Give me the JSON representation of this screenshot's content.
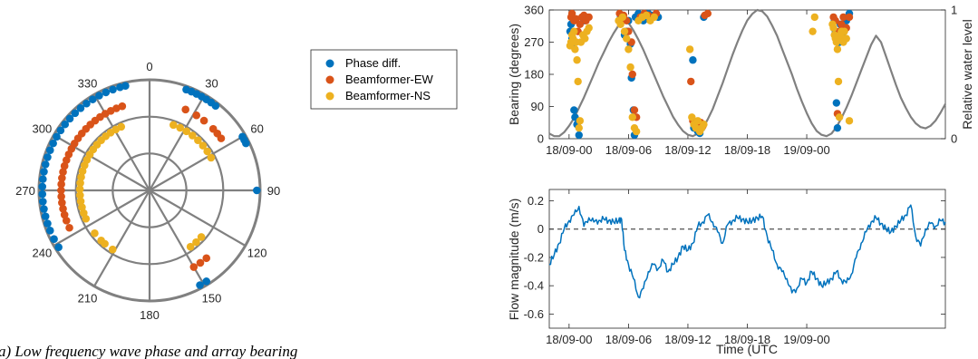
{
  "caption": "a) Low frequency wave phase and array bearing",
  "chart_data": [
    {
      "type": "scatter",
      "subtype": "polar",
      "angle_ticks": [
        "0",
        "30",
        "60",
        "90",
        "120",
        "150",
        "180",
        "210",
        "240",
        "270",
        "300",
        "330"
      ],
      "angle_zero": "top",
      "angle_direction": "clockwise",
      "rings": 3,
      "radial_tick_labels": "none",
      "legend_placement": "top-right",
      "series": [
        {
          "name": "Phase diff.",
          "color": "#0072BD",
          "r": 0.97,
          "angles": [
            238,
            243,
            248,
            252,
            256,
            260,
            264,
            268,
            272,
            276,
            280,
            284,
            288,
            292,
            296,
            300,
            304,
            308,
            312,
            316,
            320,
            324,
            328,
            332,
            336,
            340,
            344,
            347,
            20,
            23,
            26,
            29,
            32,
            35,
            38,
            60,
            62,
            64,
            90,
            148,
            152
          ]
        },
        {
          "name": "Beamformer-EW",
          "color": "#D95319",
          "r": 0.8,
          "angles": [
            245,
            250,
            254,
            258,
            262,
            266,
            270,
            274,
            278,
            282,
            286,
            290,
            294,
            298,
            302,
            306,
            310,
            314,
            318,
            322,
            326,
            330,
            334,
            338,
            342,
            24,
            32,
            38,
            46,
            50,
            54,
            140,
            145,
            150
          ]
        },
        {
          "name": "Beamformer-NS",
          "color": "#EDB120",
          "r": 0.63,
          "angles": [
            246,
            251,
            256,
            261,
            266,
            271,
            276,
            281,
            286,
            291,
            296,
            301,
            306,
            311,
            316,
            321,
            326,
            331,
            336,
            20,
            26,
            32,
            38,
            44,
            50,
            56,
            62,
            232,
            224,
            220,
            212,
            132,
            138,
            144
          ]
        }
      ]
    },
    {
      "type": "scatter",
      "ylabel": "Bearing (degrees)",
      "y2label": "Relative water level",
      "x_tick_labels": [
        "18/09-00",
        "18/09-06",
        "18/09-12",
        "18/09-18",
        "19/09-00"
      ],
      "x_range_hours": [
        -2,
        38
      ],
      "yticks": [
        "0",
        "90",
        "180",
        "270",
        "360"
      ],
      "ylim": [
        0,
        360
      ],
      "y2ticks": [
        "0",
        "1"
      ],
      "y2lim": [
        0,
        1
      ],
      "water_level": {
        "name": "Relative water level",
        "color": "#808080",
        "x_hours": [
          -2,
          -1.5,
          -1,
          -0.5,
          0,
          0.5,
          1,
          1.5,
          2,
          2.5,
          3,
          3.5,
          4,
          4.5,
          5,
          5.5,
          6,
          6.5,
          7,
          7.5,
          8,
          8.5,
          9,
          9.5,
          10,
          10.5,
          11,
          11.5,
          12,
          12.5,
          13,
          13.5,
          14,
          14.5,
          15,
          15.5,
          16,
          16.5,
          17,
          17.5,
          18,
          18.5,
          19,
          19.5,
          20,
          20.5,
          21,
          21.5,
          22,
          22.5,
          23,
          23.5,
          24,
          24.5,
          25,
          25.5,
          26,
          26.5,
          27,
          27.5,
          28,
          28.5,
          29,
          29.5,
          30,
          30.5,
          31,
          31.5,
          32,
          32.5,
          33,
          33.5,
          34,
          34.5,
          35,
          35.5,
          36,
          36.5,
          37,
          37.5,
          38
        ],
        "values": [
          0.04,
          0.02,
          0.02,
          0.05,
          0.1,
          0.16,
          0.24,
          0.32,
          0.41,
          0.5,
          0.59,
          0.67,
          0.75,
          0.82,
          0.88,
          0.92,
          0.9,
          0.84,
          0.77,
          0.69,
          0.6,
          0.51,
          0.42,
          0.33,
          0.25,
          0.17,
          0.11,
          0.06,
          0.03,
          0.02,
          0.04,
          0.08,
          0.15,
          0.23,
          0.33,
          0.43,
          0.54,
          0.65,
          0.75,
          0.84,
          0.92,
          0.97,
          1.0,
          0.99,
          0.95,
          0.88,
          0.8,
          0.7,
          0.6,
          0.5,
          0.39,
          0.29,
          0.2,
          0.12,
          0.06,
          0.03,
          0.02,
          0.04,
          0.09,
          0.16,
          0.24,
          0.33,
          0.43,
          0.53,
          0.63,
          0.73,
          0.8,
          0.75,
          0.64,
          0.53,
          0.42,
          0.32,
          0.24,
          0.17,
          0.12,
          0.09,
          0.08,
          0.1,
          0.14,
          0.2,
          0.27
        ]
      },
      "series": [
        {
          "name": "Phase diff.",
          "color": "#0072BD",
          "x_hours": [
            0.1,
            0.2,
            0.3,
            0.4,
            0.5,
            0.6,
            0.8,
            1.0,
            1.5,
            5.2,
            5.4,
            5.6,
            5.8,
            6.0,
            6.2,
            6.3,
            6.5,
            6.6,
            6.7,
            7.0,
            7.2,
            7.5,
            8.0,
            8.5,
            9.0,
            12.5,
            12.6,
            12.8,
            13.0,
            13.2,
            13.4,
            13.6,
            26.8,
            26.9,
            27.0,
            27.1,
            27.2,
            27.3,
            27.4,
            27.6,
            28.0,
            28.3
          ],
          "y": [
            300,
            320,
            280,
            270,
            80,
            60,
            40,
            10,
            330,
            340,
            345,
            290,
            300,
            330,
            265,
            170,
            80,
            10,
            340,
            350,
            340,
            330,
            350,
            345,
            340,
            220,
            30,
            40,
            20,
            15,
            30,
            340,
            330,
            300,
            100,
            30,
            290,
            270,
            320,
            290,
            330,
            350
          ]
        },
        {
          "name": "Beamformer-EW",
          "color": "#D95319",
          "x_hours": [
            0.2,
            0.3,
            0.5,
            0.7,
            0.9,
            1.1,
            1.3,
            1.5,
            1.7,
            2.0,
            5.1,
            5.3,
            5.5,
            5.8,
            6.0,
            6.3,
            6.4,
            6.6,
            6.8,
            7.2,
            7.6,
            8.0,
            8.4,
            8.8,
            12.3,
            12.5,
            12.7,
            13.0,
            13.3,
            13.5,
            13.7,
            14.0,
            26.7,
            26.9,
            27.1,
            27.3,
            27.5,
            27.7,
            28.0,
            28.3
          ],
          "y": [
            340,
            350,
            330,
            335,
            300,
            320,
            340,
            345,
            330,
            340,
            350,
            340,
            345,
            330,
            300,
            270,
            180,
            80,
            60,
            340,
            350,
            345,
            340,
            350,
            160,
            50,
            40,
            30,
            45,
            35,
            345,
            350,
            340,
            330,
            70,
            300,
            320,
            340,
            310,
            340
          ]
        },
        {
          "name": "Beamformer-NS",
          "color": "#EDB120",
          "x_hours": [
            0.1,
            0.2,
            0.3,
            0.4,
            0.5,
            0.6,
            0.7,
            0.8,
            0.9,
            1.0,
            1.1,
            1.2,
            1.4,
            1.6,
            1.8,
            2.0,
            5.0,
            5.2,
            5.4,
            5.6,
            5.8,
            6.0,
            6.2,
            6.4,
            6.6,
            6.8,
            7.0,
            7.4,
            7.8,
            8.2,
            8.6,
            12.2,
            12.4,
            12.6,
            12.8,
            13.0,
            13.2,
            13.4,
            13.6,
            24.6,
            24.8,
            26.6,
            26.7,
            26.8,
            26.9,
            27.0,
            27.1,
            27.2,
            27.3,
            27.4,
            27.5,
            27.6,
            27.7,
            27.8,
            28.0,
            28.3
          ],
          "y": [
            260,
            270,
            290,
            280,
            300,
            250,
            270,
            220,
            160,
            30,
            50,
            270,
            290,
            280,
            300,
            310,
            330,
            320,
            340,
            300,
            280,
            250,
            200,
            60,
            30,
            20,
            330,
            340,
            345,
            330,
            340,
            250,
            60,
            40,
            30,
            50,
            20,
            30,
            40,
            300,
            340,
            320,
            310,
            290,
            280,
            270,
            250,
            160,
            60,
            290,
            300,
            280,
            270,
            300,
            280,
            50
          ]
        }
      ]
    },
    {
      "type": "line",
      "ylabel": "Flow magnitude (m/s)",
      "xlabel": "Time (UTC",
      "x_tick_labels": [
        "18/09-00",
        "18/09-06",
        "18/09-12",
        "18/09-18",
        "19/09-00"
      ],
      "x_range_hours": [
        -2,
        38
      ],
      "yticks": [
        "-0.6",
        "-0.4",
        "-0.2",
        "0",
        "0.2"
      ],
      "ylim": [
        -0.7,
        0.28
      ],
      "zero_line": "dashed",
      "series": [
        {
          "name": "",
          "color": "#0072BD",
          "x_hours": [
            -2,
            -1.5,
            -1,
            -0.5,
            0,
            0.5,
            1,
            1.5,
            2,
            2.5,
            3,
            3.5,
            4,
            4.5,
            5,
            5.3,
            5.6,
            6,
            6.5,
            7,
            7.5,
            8,
            8.5,
            9,
            9.5,
            10,
            10.5,
            11,
            11.5,
            12,
            12.5,
            13,
            13.5,
            14,
            14.5,
            15,
            15.5,
            16,
            16.5,
            17,
            17.5,
            18,
            18.5,
            19,
            19.5,
            20,
            20.5,
            21,
            21.5,
            22,
            22.5,
            23,
            23.5,
            24,
            24.5,
            25,
            25.5,
            26,
            26.5,
            27,
            27.5,
            28,
            28.5,
            29,
            29.5,
            30,
            30.5,
            31,
            31.5,
            32,
            32.5,
            33,
            33.5,
            34,
            34.5,
            35,
            35.5,
            36,
            36.5,
            37,
            37.5,
            38
          ],
          "values": [
            -0.25,
            -0.18,
            -0.1,
            0.0,
            0.06,
            0.1,
            0.16,
            0.02,
            0.08,
            0.05,
            0.06,
            0.07,
            0.06,
            0.05,
            0.06,
            0.07,
            -0.15,
            -0.25,
            -0.35,
            -0.48,
            -0.42,
            -0.3,
            -0.25,
            -0.28,
            -0.22,
            -0.3,
            -0.25,
            -0.2,
            -0.12,
            -0.15,
            -0.1,
            0.02,
            0.05,
            0.1,
            0.05,
            -0.02,
            -0.1,
            0.03,
            0.06,
            0.08,
            0.07,
            0.05,
            0.06,
            0.08,
            0.09,
            -0.05,
            -0.15,
            -0.25,
            -0.3,
            -0.35,
            -0.45,
            -0.42,
            -0.35,
            -0.38,
            -0.3,
            -0.35,
            -0.4,
            -0.38,
            -0.35,
            -0.3,
            -0.36,
            -0.38,
            -0.32,
            -0.2,
            -0.1,
            -0.02,
            0.05,
            0.08,
            0.04,
            0.0,
            -0.02,
            0.02,
            0.06,
            0.1,
            0.17,
            -0.05,
            -0.12,
            0.0,
            0.04,
            0.02,
            0.06,
            0.05
          ]
        }
      ]
    }
  ]
}
